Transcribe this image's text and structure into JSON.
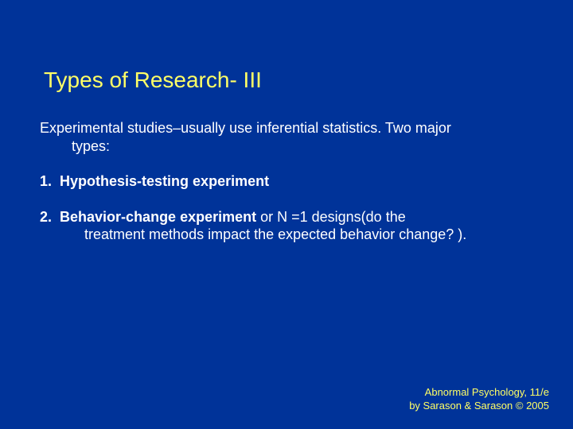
{
  "background_color": "#003399",
  "title_color": "#ffff66",
  "text_color": "#ffffff",
  "footer_color": "#ffff66",
  "title_fontsize": 28,
  "body_fontsize": 18,
  "footer_fontsize": 13,
  "title": "Types of Research- III",
  "intro_line1": "Experimental studies–usually use inferential statistics.  Two major",
  "intro_line2": "types:",
  "items": [
    {
      "num": "1.",
      "bold": "Hypothesis-testing experiment",
      "rest": "",
      "cont": ""
    },
    {
      "num": "2.",
      "bold": "Behavior-change experiment",
      "rest": " or N =1 designs(do the",
      "cont": "treatment methods impact the expected behavior change? )."
    }
  ],
  "footer_line1": "Abnormal Psychology, 11/e",
  "footer_line2": "by Sarason & Sarason © 2005"
}
